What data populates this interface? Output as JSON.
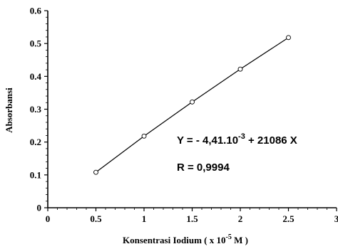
{
  "chart_data": {
    "type": "scatter",
    "title": "",
    "xlabel": {
      "main": "Konsentrasi Iodium ( x 10",
      "sup": "-5",
      "tail": " M )"
    },
    "ylabel": "Absorbansi",
    "xlim": [
      0,
      3
    ],
    "ylim": [
      0,
      0.6
    ],
    "x_ticks": [
      0,
      0.5,
      1,
      1.5,
      2,
      2.5,
      3
    ],
    "x_tick_labels": [
      "0",
      "0.5",
      "1",
      "1.5",
      "2",
      "2.5",
      "3"
    ],
    "y_ticks": [
      0,
      0.1,
      0.2,
      0.3,
      0.4,
      0.5,
      0.6
    ],
    "y_tick_labels": [
      "0",
      "0.1",
      "0.2",
      "0.3",
      "0.4",
      "0.5",
      "0.6"
    ],
    "grid": false,
    "series": [
      {
        "x": [
          0.5,
          1,
          1.5,
          2,
          2.5
        ],
        "y": [
          0.108,
          0.218,
          0.322,
          0.422,
          0.518
        ],
        "marker": "open-circle",
        "line": true
      }
    ],
    "annotations": {
      "equation": {
        "prefix": "Y = - 4,41.10",
        "sup": "-3",
        "suffix": " + 21086 X"
      },
      "r_value": "R = 0,9994"
    }
  }
}
